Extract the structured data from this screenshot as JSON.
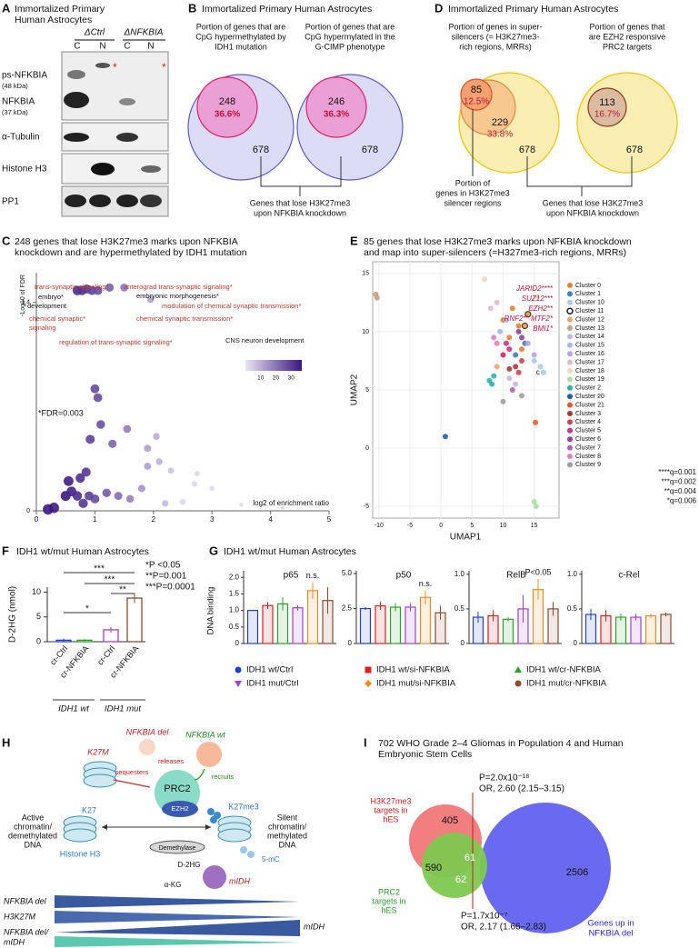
{
  "panel_a": {
    "letter": "A",
    "title": [
      "Immortalized Primary",
      "Human Astrocytes"
    ],
    "groups": [
      "ΔCtrl",
      "ΔNFKBIA"
    ],
    "lanes": [
      "C",
      "N",
      "C",
      "N"
    ],
    "blots": [
      [
        "ps-NFKBIA",
        "(48 kDa)",
        "NFKBIA",
        "(37 kDa)"
      ],
      [
        "α-Tubulin"
      ],
      [
        "Histone H3"
      ],
      [
        "PP1"
      ]
    ],
    "asterisks": [
      "*",
      "*"
    ]
  },
  "panel_b": {
    "letter": "B",
    "title": "Immortalized Primary Human Astrocytes",
    "venns": [
      {
        "label": [
          "Portion of genes that are",
          "CpG hypermethylated by",
          "IDH1 mutation"
        ],
        "inner": 248,
        "inner_pct": "36.6%",
        "outer": 678
      },
      {
        "label": [
          "Portion of genes that are",
          "CpG hypermylated in the",
          "G-CIMP phenotype"
        ],
        "inner": 246,
        "inner_pct": "36.3%",
        "outer": 678
      }
    ],
    "bottom": [
      "Genes that lose H3K27me3",
      "upon NFKBIA knockdown"
    ]
  },
  "panel_d": {
    "letter": "D",
    "title": "Immortalized Primary Human Astrocytes",
    "venn1": {
      "label": [
        "Portion of genes in super-",
        "silencers (= H3K27me3-",
        "rich regions, MRRs)"
      ],
      "n1": 85,
      "p1": "12.5%",
      "n2": 229,
      "p2": "33.8%",
      "outer": 678,
      "label2": [
        "Portion of",
        "genes in H3K27me3",
        "silencer regions"
      ]
    },
    "venn2": {
      "label": [
        "Portion of genes that",
        "are EZH2 responsive",
        "PRC2 targets"
      ],
      "inner": 113,
      "inner_pct": "16.7%",
      "outer": 678
    },
    "bottom": [
      "Genes that lose H3K27me3",
      "upon NFKBIA knockdown"
    ]
  },
  "panel_c": {
    "letter": "C",
    "title": [
      "248 genes that lose H3K27me3 marks upon NFKBIA",
      "knockdown and are hypermethylated by IDH1 mutation"
    ],
    "y_label": "-Log10 of FDR",
    "x_label": "log2 of enrichment ratio",
    "fdr_note": "*FDR=0.003",
    "xlim": [
      0,
      5
    ],
    "xticks": [
      0,
      1,
      2,
      3,
      4,
      5
    ],
    "ylim": [
      0,
      1.6
    ],
    "yticks": [
      0,
      1.4
    ],
    "colorbar_ticks": [
      10,
      20,
      30
    ],
    "x": [
      0.7,
      0.78,
      0.86,
      0.95,
      1.05,
      1.25,
      1.5,
      1.95,
      1.0,
      1.05,
      1.1,
      0.92,
      1.3,
      1.55,
      1.9,
      2.05,
      2.3,
      2.75,
      2.7,
      3.0,
      1.9,
      2.1,
      0.5,
      0.6,
      0.7,
      0.8,
      0.9,
      1.0,
      0.55,
      0.75,
      0.85,
      1.2,
      1.4,
      1.6,
      1.8,
      2.2,
      2.5,
      3.5,
      4.2,
      0.3,
      0.2
    ],
    "y": [
      1.48,
      1.48,
      1.49,
      1.48,
      1.48,
      1.5,
      1.5,
      1.42,
      0.82,
      0.76,
      0.58,
      0.48,
      0.45,
      0.55,
      0.42,
      0.5,
      0.27,
      0.25,
      0.18,
      0.15,
      0.3,
      0.33,
      0.1,
      0.13,
      0.1,
      0.05,
      0.1,
      0.08,
      0.2,
      0.22,
      0.26,
      0.12,
      0.1,
      0.08,
      0.15,
      0.05,
      0.06,
      0.04,
      0.02,
      0.02,
      0.01
    ],
    "terms": [
      {
        "text": "trans-synaptic signaling*",
        "color": "#c0392b"
      },
      {
        "text": "anterograd trans-synaptic signaling*",
        "color": "#c0392b"
      },
      {
        "text": "embryo*",
        "color": "#111111"
      },
      {
        "text": "development",
        "color": "#111111"
      },
      {
        "text": "embryonic morphogenesis*",
        "color": "#111111"
      },
      {
        "text": "modulation of chemical synaptic transmission*",
        "color": "#c0392b"
      },
      {
        "text": "chemical synaptic*",
        "color": "#c0392b"
      },
      {
        "text": "signaling",
        "color": "#c0392b"
      },
      {
        "text": "chemical synaptic transmission*",
        "color": "#c0392b"
      },
      {
        "text": "regulation of trans-synaptic signaling*",
        "color": "#c0392b"
      },
      {
        "text": "CNS neuron development",
        "color": "#111111"
      }
    ]
  },
  "panel_e": {
    "letter": "E",
    "title": [
      "85 genes that lose H3K27me3 marks upon NFKBIA knockdown",
      "and map into super-silencers (=H327me3-rich regions, MRRs)"
    ],
    "x_label": "UMAP1",
    "y_label": "UMAP2",
    "xlim": [
      -11,
      19
    ],
    "ylim": [
      -6,
      16
    ],
    "xticks": [
      -10,
      -5,
      0,
      5,
      10,
      15
    ],
    "yticks": [
      -5,
      0,
      5,
      10,
      15
    ],
    "genes": [
      "JARID2****",
      "SUZ12***",
      "EZH2**",
      "RNF2** MTF2*",
      "BMI1*"
    ],
    "point_label": "c",
    "qvalues": [
      "****q=0.001",
      "***q=0.002",
      "**q=0.004",
      "*q=0.006"
    ],
    "clusters": [
      {
        "name": "Cluster 0",
        "color": "#e8812c",
        "x": [
          10,
          11,
          12.5,
          13,
          11.5
        ],
        "y": [
          11,
          9.5,
          10.5,
          8.5,
          12
        ]
      },
      {
        "name": "Cluster 1",
        "color": "#3d7fc1",
        "x": [
          12,
          13.5
        ],
        "y": [
          8,
          9
        ]
      },
      {
        "name": "Cluster 10",
        "color": "#a9c9e8",
        "x": [
          15,
          16,
          16.5
        ],
        "y": [
          7.5,
          7,
          6.5
        ]
      },
      {
        "name": "Cluster 11",
        "color": "#222222",
        "marker": "ring",
        "x": [
          14,
          13.5
        ],
        "y": [
          11.5,
          10.5
        ]
      },
      {
        "name": "Cluster 12",
        "color": "#f5a06a",
        "x": [
          9,
          10
        ],
        "y": [
          7,
          8
        ]
      },
      {
        "name": "Cluster 13",
        "color": "#c8a088",
        "x": [
          -10.5,
          -10.3
        ],
        "y": [
          13.2,
          12.9
        ]
      },
      {
        "name": "Cluster 14",
        "color": "#c5b8e0",
        "x": [
          11,
          12
        ],
        "y": [
          6,
          5.5
        ]
      },
      {
        "name": "Cluster 15",
        "color": "#a8b8e8",
        "x": [
          9.5,
          10.5
        ],
        "y": [
          10,
          11
        ]
      },
      {
        "name": "Cluster 16",
        "color": "#b9a3e0",
        "x": [
          14,
          15
        ],
        "y": [
          9,
          8
        ]
      },
      {
        "name": "Cluster 17",
        "color": "#e0b8d0",
        "x": [
          8,
          9
        ],
        "y": [
          12,
          12.5
        ]
      },
      {
        "name": "Cluster 18",
        "color": "#e8dcc0",
        "x": [
          7,
          15.5
        ],
        "y": [
          14.5,
          13
        ]
      },
      {
        "name": "Cluster 19",
        "color": "#a8e0a0",
        "x": [
          15,
          15.3
        ],
        "y": [
          -4.6,
          -5
        ]
      },
      {
        "name": "Cluster 2",
        "color": "#2ab0b0",
        "x": [
          7.8,
          8.2,
          8.5
        ],
        "y": [
          5.8,
          5.5,
          6.2
        ]
      },
      {
        "name": "Cluster 20",
        "color": "#1f5fa8",
        "x": [
          0.7
        ],
        "y": [
          1
        ]
      },
      {
        "name": "Cluster 21",
        "color": "#e85a20",
        "x": [
          15.2
        ],
        "y": [
          2.2
        ]
      },
      {
        "name": "Cluster 3",
        "color": "#a83a3a",
        "x": [
          12,
          11
        ],
        "y": [
          7,
          6.8
        ]
      },
      {
        "name": "Cluster 4",
        "color": "#d04050",
        "x": [
          13,
          12.5
        ],
        "y": [
          7.5,
          6.5
        ]
      },
      {
        "name": "Cluster 5",
        "color": "#d03080",
        "x": [
          10.5,
          11,
          10
        ],
        "y": [
          9,
          8.5,
          8
        ]
      },
      {
        "name": "Cluster 6",
        "color": "#9040a0",
        "x": [
          12.5,
          13
        ],
        "y": [
          10,
          9.5
        ]
      },
      {
        "name": "Cluster 7",
        "color": "#b060b0",
        "x": [
          11.5
        ],
        "y": [
          5
        ]
      },
      {
        "name": "Cluster 8",
        "color": "#e080c0",
        "x": [
          9,
          8.5
        ],
        "y": [
          9,
          9.5
        ]
      },
      {
        "name": "Cluster 9",
        "color": "#a0a0a0",
        "x": [
          10,
          13
        ],
        "y": [
          4,
          4.5
        ]
      }
    ]
  },
  "panel_f": {
    "letter": "F",
    "title": "IDH1 wt/mut Human Astrocytes",
    "y_label": "D-2HG (nmol)",
    "ylim": [
      0,
      11
    ],
    "yticks": [
      0,
      5,
      10
    ],
    "categories": [
      "cr-Ctrl",
      "cr-NFKBIA",
      "cr-Ctrl",
      "cr-NFKBIA"
    ],
    "values": [
      0.3,
      0.3,
      2.4,
      8.8
    ],
    "errors": [
      0.3,
      0.2,
      0.6,
      1.0
    ],
    "colors": [
      "#1f3fd0",
      "#2ca02c",
      "#a040d0",
      "#8c4a2f"
    ],
    "groups": [
      "IDH1 wt",
      "IDH1 mut"
    ],
    "sig": [
      "***",
      "***",
      "**",
      "*"
    ],
    "legend": [
      "*P <0.05",
      "**P=0.001",
      "***P=0.0001"
    ]
  },
  "panel_g": {
    "letter": "G",
    "title": "IDH1 wt/mut Human Astrocytes",
    "y_label": "DNA binding",
    "series": [
      {
        "name": "IDH1 wt/Ctrl",
        "color": "#1f3fd0",
        "marker": "circle"
      },
      {
        "name": "IDH1 wt/si-NFKBIA",
        "color": "#e02020",
        "marker": "square"
      },
      {
        "name": "IDH1 wt/cr-NFKBIA",
        "color": "#2ca02c",
        "marker": "triangle"
      },
      {
        "name": "IDH1 mut/Ctrl",
        "color": "#a040d0",
        "marker": "triangle-down"
      },
      {
        "name": "IDH1 mut/si-NFKBIA",
        "color": "#f08a20",
        "marker": "diamond"
      },
      {
        "name": "IDH1 mut/cr-NFKBIA",
        "color": "#8c4a2f",
        "marker": "circle"
      }
    ],
    "panels": [
      {
        "name": "p65",
        "ylim": [
          0,
          2.2
        ],
        "yticks": [
          0,
          0.5,
          {
            "value": 1,
            "label": "1.0"
          },
          1.5,
          {
            "value": 2,
            "label": "2.0"
          }
        ],
        "values": [
          1.0,
          1.15,
          1.2,
          1.08,
          1.6,
          1.3
        ],
        "errors": [
          0.02,
          0.1,
          0.2,
          0.08,
          0.25,
          0.4
        ],
        "note": "n.s."
      },
      {
        "name": "p50",
        "ylim": [
          0,
          5.2
        ],
        "yticks": [
          0,
          2.5,
          {
            "value": 5,
            "label": "5.0"
          }
        ],
        "values": [
          2.5,
          2.7,
          2.6,
          2.6,
          3.3,
          2.2
        ],
        "errors": [
          0.1,
          0.3,
          0.3,
          0.3,
          0.5,
          0.5
        ],
        "note": "n.s."
      },
      {
        "name": "RelB",
        "ylim": [
          0,
          1.05
        ],
        "yticks": [
          0,
          0.5,
          {
            "value": 1,
            "label": "1.0"
          }
        ],
        "values": [
          0.38,
          0.4,
          0.35,
          0.5,
          0.78,
          0.5
        ],
        "errors": [
          0.08,
          0.08,
          0.03,
          0.2,
          0.15,
          0.1
        ],
        "note": "P<0.05"
      },
      {
        "name": "c-Rel",
        "ylim": [
          0,
          1.05
        ],
        "yticks": [
          0,
          0.5,
          {
            "value": 1,
            "label": "1.0"
          }
        ],
        "values": [
          0.42,
          0.4,
          0.38,
          0.38,
          0.4,
          0.42
        ],
        "errors": [
          0.08,
          0.08,
          0.05,
          0.05,
          0.03,
          0.03
        ]
      }
    ]
  },
  "panel_h": {
    "letter": "H",
    "nfkbia_del": "NFKBIA del",
    "nfkbia_wt": "NFKBIA wt",
    "k27m": "K27M",
    "sequesters": "sequesters",
    "releases": "releases",
    "recruits": "recruits",
    "prc2": "PRC2",
    "ezh2": "EZH2",
    "k27me3": "K27me3",
    "k27": "K27",
    "active": [
      "Active",
      "chromatin/",
      "demethylated",
      "DNA"
    ],
    "silent": [
      "Silent",
      "chromatin/",
      "methylated",
      "DNA"
    ],
    "histone": "Histone H3",
    "demethylase": "Demethylase",
    "d2hg": "D-2HG",
    "akg": "α-KG",
    "mc": "5-mC",
    "midh": "mIDH",
    "wedges": [
      "NFKBIA del",
      "H3K27M",
      "mIDH",
      "NFKBIA del/",
      "mIDH"
    ]
  },
  "panel_i": {
    "letter": "I",
    "title": [
      "702 WHO Grade 2–4 Gliomas in Population 4 and Human",
      "Embryonic Stem Cells"
    ],
    "red_label": [
      "H3K27me3",
      "targets in",
      "hES"
    ],
    "green_label": [
      "PRC2",
      "targets in",
      "hES"
    ],
    "blue_label": [
      "Genes up in",
      "NFKBIA del"
    ],
    "counts": [
      405,
      590,
      61,
      62,
      2506
    ],
    "stat_top": [
      "P=2.0x10⁻¹⁸",
      "OR, 2.60 (2.15–3.15)"
    ],
    "stat_bottom": [
      "P=1.7x10⁻⁷",
      "OR, 2.17 (1.66–2.83)"
    ]
  }
}
